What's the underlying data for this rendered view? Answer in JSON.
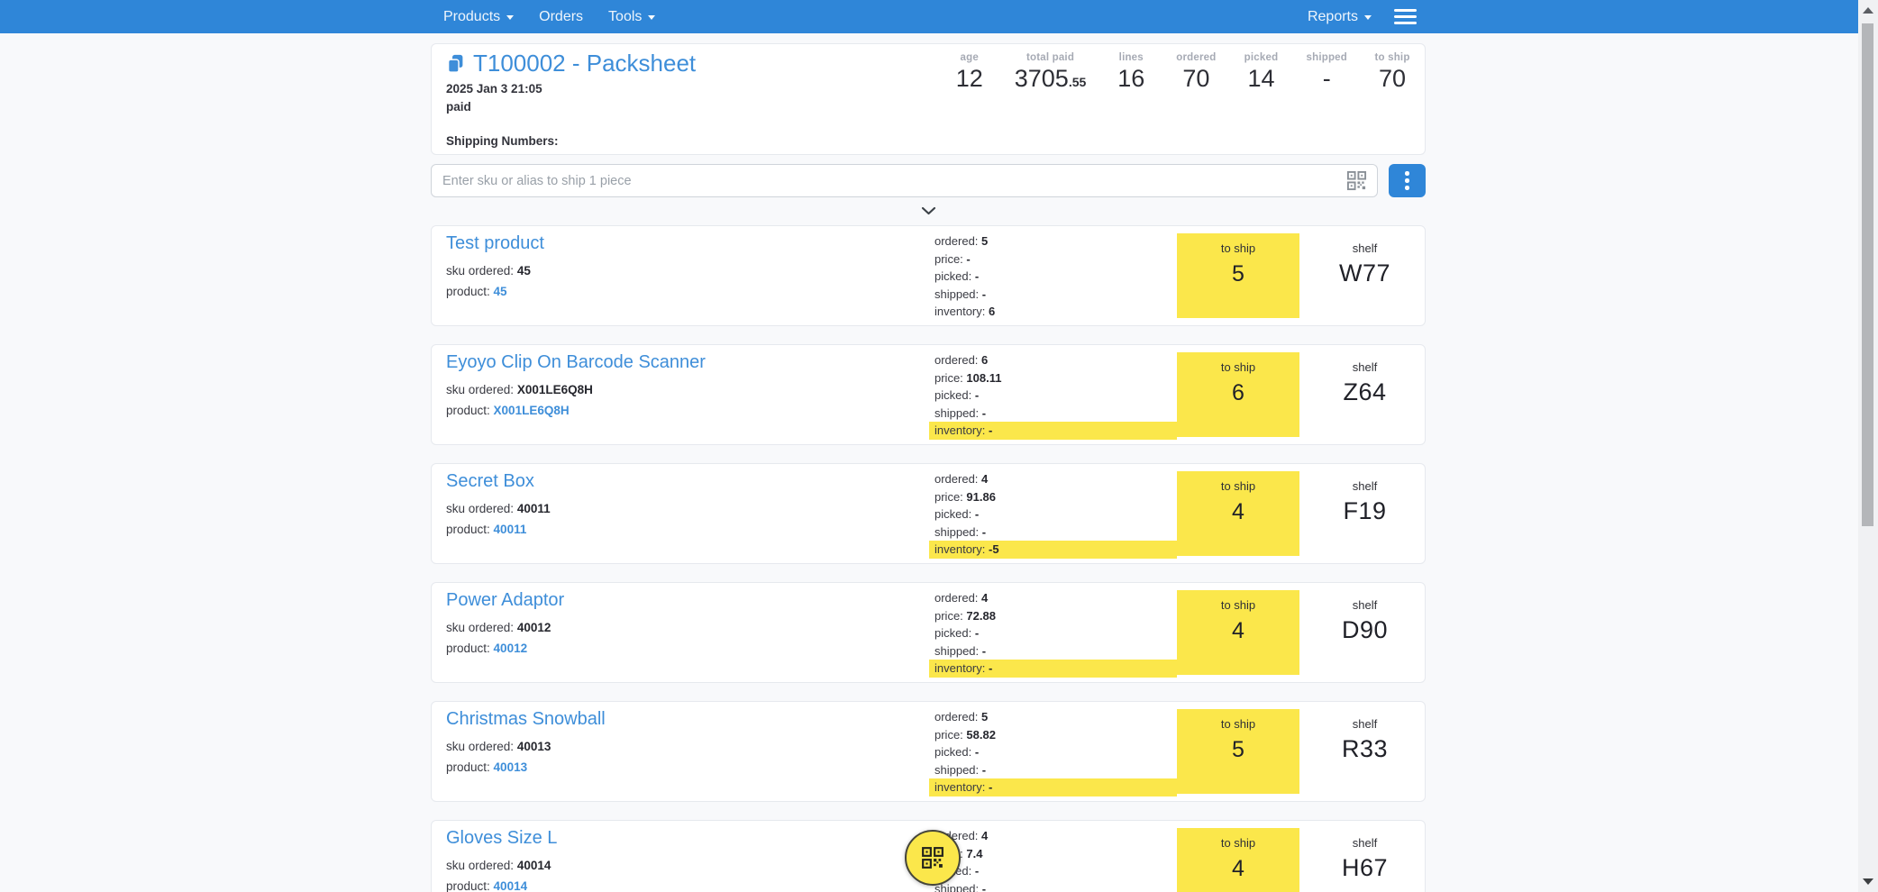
{
  "navbar": {
    "items": [
      {
        "label": "Products",
        "caret": true
      },
      {
        "label": "Orders",
        "caret": false
      },
      {
        "label": "Tools",
        "caret": true
      }
    ],
    "right_items": [
      {
        "label": "Reports",
        "caret": true
      }
    ]
  },
  "header": {
    "title": "T100002 - Packsheet",
    "datetime": "2025 Jan 3 21:05",
    "status": "paid",
    "shipping_numbers_label": "Shipping Numbers:",
    "stats": [
      {
        "label": "age",
        "value": "12"
      },
      {
        "label": "total paid",
        "value": "3705",
        "decimal": ".55"
      },
      {
        "label": "lines",
        "value": "16"
      },
      {
        "label": "ordered",
        "value": "70"
      },
      {
        "label": "picked",
        "value": "14"
      },
      {
        "label": "shipped",
        "value": "-"
      },
      {
        "label": "to ship",
        "value": "70"
      }
    ]
  },
  "ship_bar": {
    "placeholder": "Enter sku or alias to ship 1 piece"
  },
  "row_labels": {
    "sku_ordered": "sku ordered:",
    "product": "product:",
    "to_ship": "to ship",
    "shelf": "shelf"
  },
  "colors": {
    "navbar_blue": "#2f86d8",
    "link_blue": "#3e8ed9",
    "highlight_yellow": "#fbe74b"
  },
  "products": [
    {
      "name": "Test product",
      "sku": "45",
      "product_code": "45",
      "details": [
        {
          "label": "ordered:",
          "value": "5",
          "highlight": false
        },
        {
          "label": "price:",
          "value": "-",
          "highlight": false
        },
        {
          "label": "picked:",
          "value": "-",
          "highlight": false
        },
        {
          "label": "shipped:",
          "value": "-",
          "highlight": false
        },
        {
          "label": "inventory:",
          "value": "6",
          "highlight": false
        }
      ],
      "to_ship": "5",
      "shelf": "W77"
    },
    {
      "name": "Eyoyo Clip On Barcode Scanner",
      "sku": "X001LE6Q8H",
      "product_code": "X001LE6Q8H",
      "details": [
        {
          "label": "ordered:",
          "value": "6",
          "highlight": false
        },
        {
          "label": "price:",
          "value": "108.11",
          "highlight": false
        },
        {
          "label": "picked:",
          "value": "-",
          "highlight": false
        },
        {
          "label": "shipped:",
          "value": "-",
          "highlight": false
        },
        {
          "label": "inventory:",
          "value": "-",
          "highlight": true
        }
      ],
      "to_ship": "6",
      "shelf": "Z64"
    },
    {
      "name": "Secret Box",
      "sku": "40011",
      "product_code": "40011",
      "details": [
        {
          "label": "ordered:",
          "value": "4",
          "highlight": false
        },
        {
          "label": "price:",
          "value": "91.86",
          "highlight": false
        },
        {
          "label": "picked:",
          "value": "-",
          "highlight": false
        },
        {
          "label": "shipped:",
          "value": "-",
          "highlight": false
        },
        {
          "label": "inventory:",
          "value": "-5",
          "highlight": true
        }
      ],
      "to_ship": "4",
      "shelf": "F19"
    },
    {
      "name": "Power Adaptor",
      "sku": "40012",
      "product_code": "40012",
      "details": [
        {
          "label": "ordered:",
          "value": "4",
          "highlight": false
        },
        {
          "label": "price:",
          "value": "72.88",
          "highlight": false
        },
        {
          "label": "picked:",
          "value": "-",
          "highlight": false
        },
        {
          "label": "shipped:",
          "value": "-",
          "highlight": false
        },
        {
          "label": "inventory:",
          "value": "-",
          "highlight": true
        }
      ],
      "to_ship": "4",
      "shelf": "D90"
    },
    {
      "name": "Christmas Snowball",
      "sku": "40013",
      "product_code": "40013",
      "details": [
        {
          "label": "ordered:",
          "value": "5",
          "highlight": false
        },
        {
          "label": "price:",
          "value": "58.82",
          "highlight": false
        },
        {
          "label": "picked:",
          "value": "-",
          "highlight": false
        },
        {
          "label": "shipped:",
          "value": "-",
          "highlight": false
        },
        {
          "label": "inventory:",
          "value": "-",
          "highlight": true
        }
      ],
      "to_ship": "5",
      "shelf": "R33"
    },
    {
      "name": "Gloves Size L",
      "sku": "40014",
      "product_code": "40014",
      "details": [
        {
          "label": "ordered:",
          "value": "4",
          "highlight": false
        },
        {
          "label": "price:",
          "value": "7.4",
          "highlight": false
        },
        {
          "label": "picked:",
          "value": "-",
          "highlight": false
        },
        {
          "label": "shipped:",
          "value": "-",
          "highlight": false
        }
      ],
      "to_ship": "4",
      "shelf": "H67"
    }
  ]
}
